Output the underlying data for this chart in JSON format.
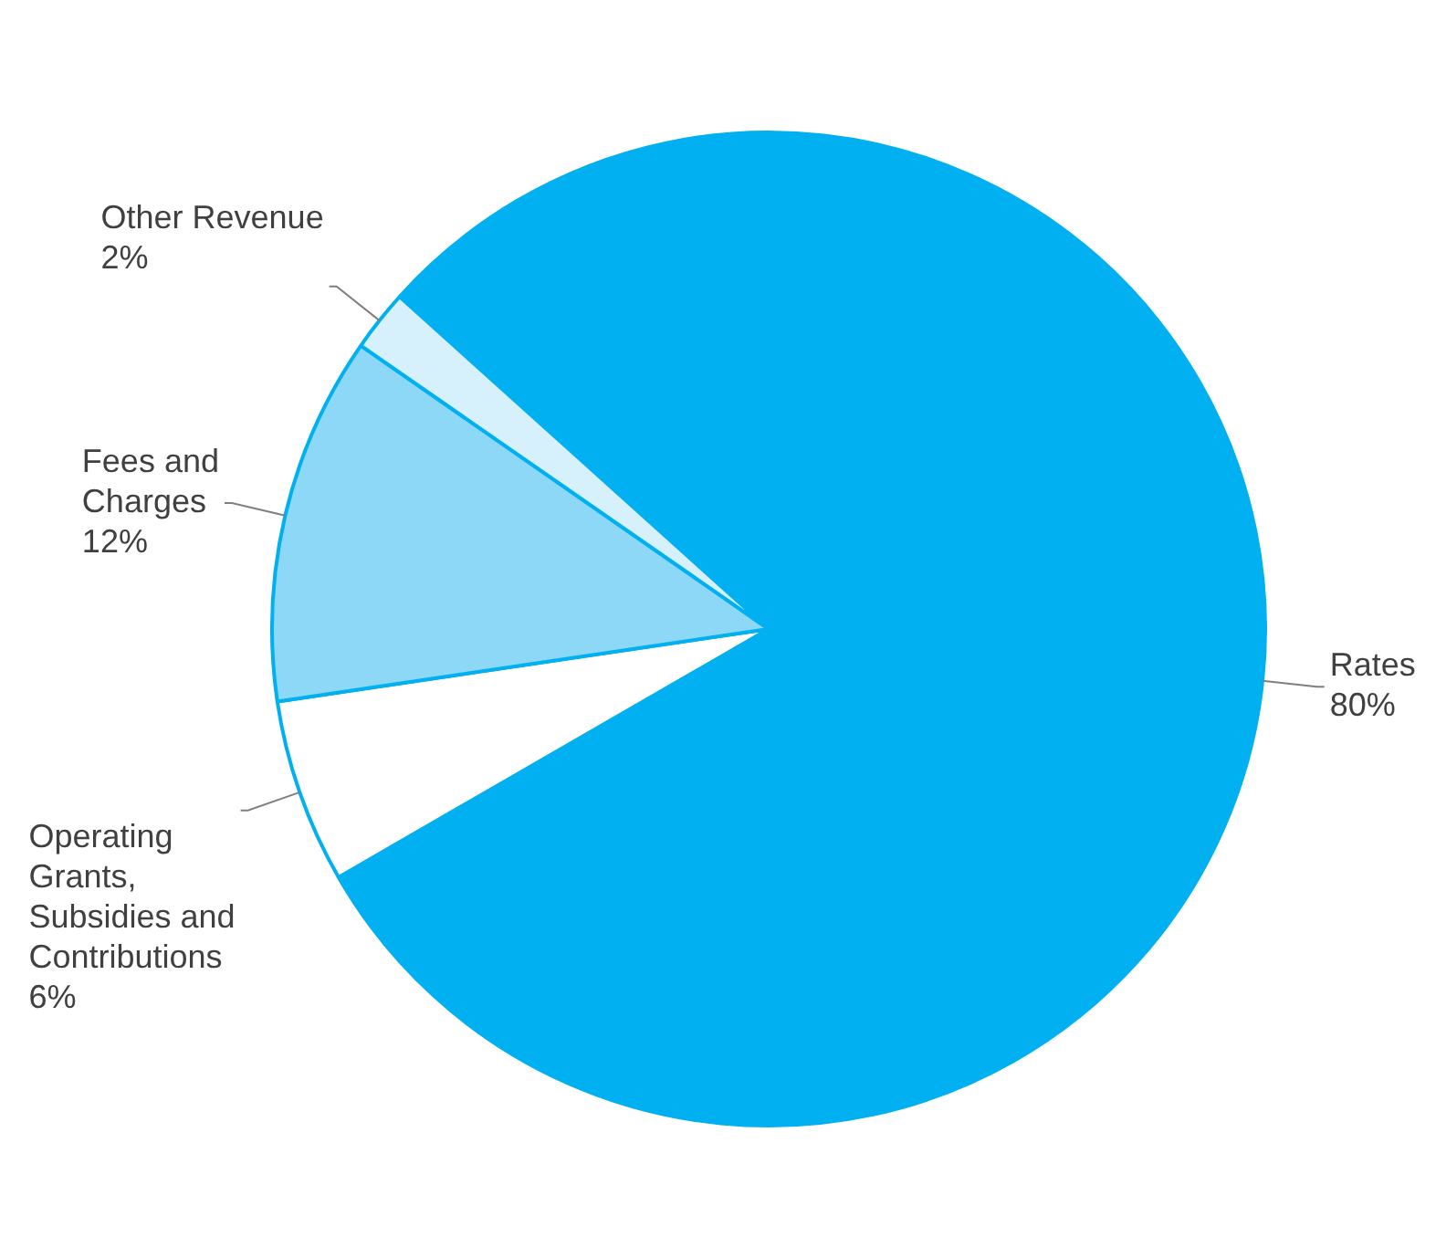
{
  "chart_data": {
    "type": "pie",
    "categories": [
      "Rates",
      "Operating Grants, Subsidies and Contributions",
      "Fees and Charges",
      "Other Revenue"
    ],
    "values": [
      80,
      6,
      12,
      2
    ],
    "colors": [
      "#00b0f0",
      "#ffffff",
      "#8dd8f7",
      "#d6f1fc"
    ],
    "value_labels": [
      "80%",
      "6%",
      "12%",
      "2%"
    ],
    "legend": false
  }
}
